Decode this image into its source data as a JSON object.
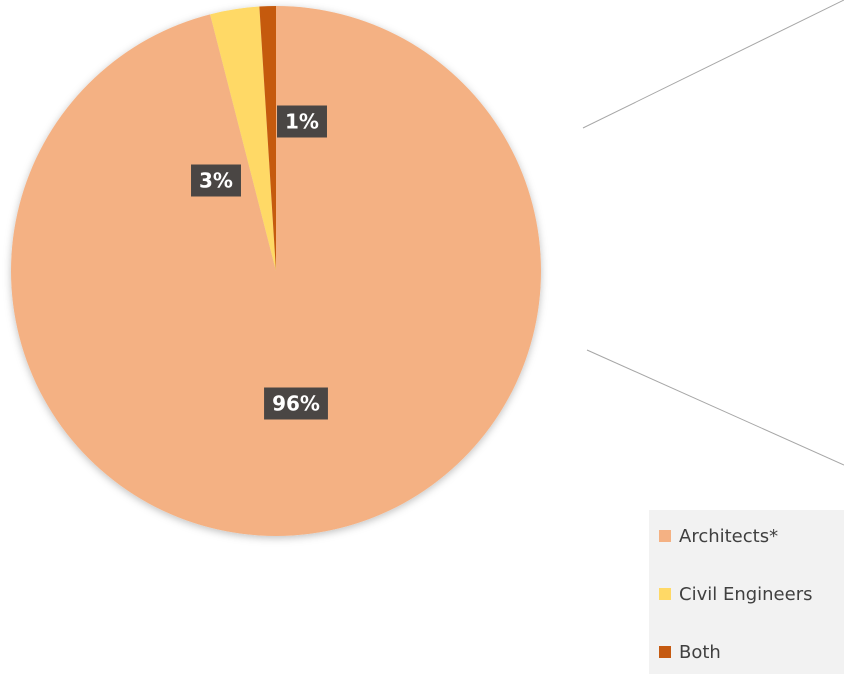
{
  "chart_data": {
    "type": "pie",
    "categories": [
      "Architects*",
      "Civil Engineers",
      "Both"
    ],
    "values": [
      96,
      3,
      1
    ],
    "value_labels": [
      "96%",
      "3%",
      "1%"
    ],
    "colors": [
      "#F4B183",
      "#FFD966",
      "#C55A11"
    ],
    "legend": "bottom-right"
  }
}
